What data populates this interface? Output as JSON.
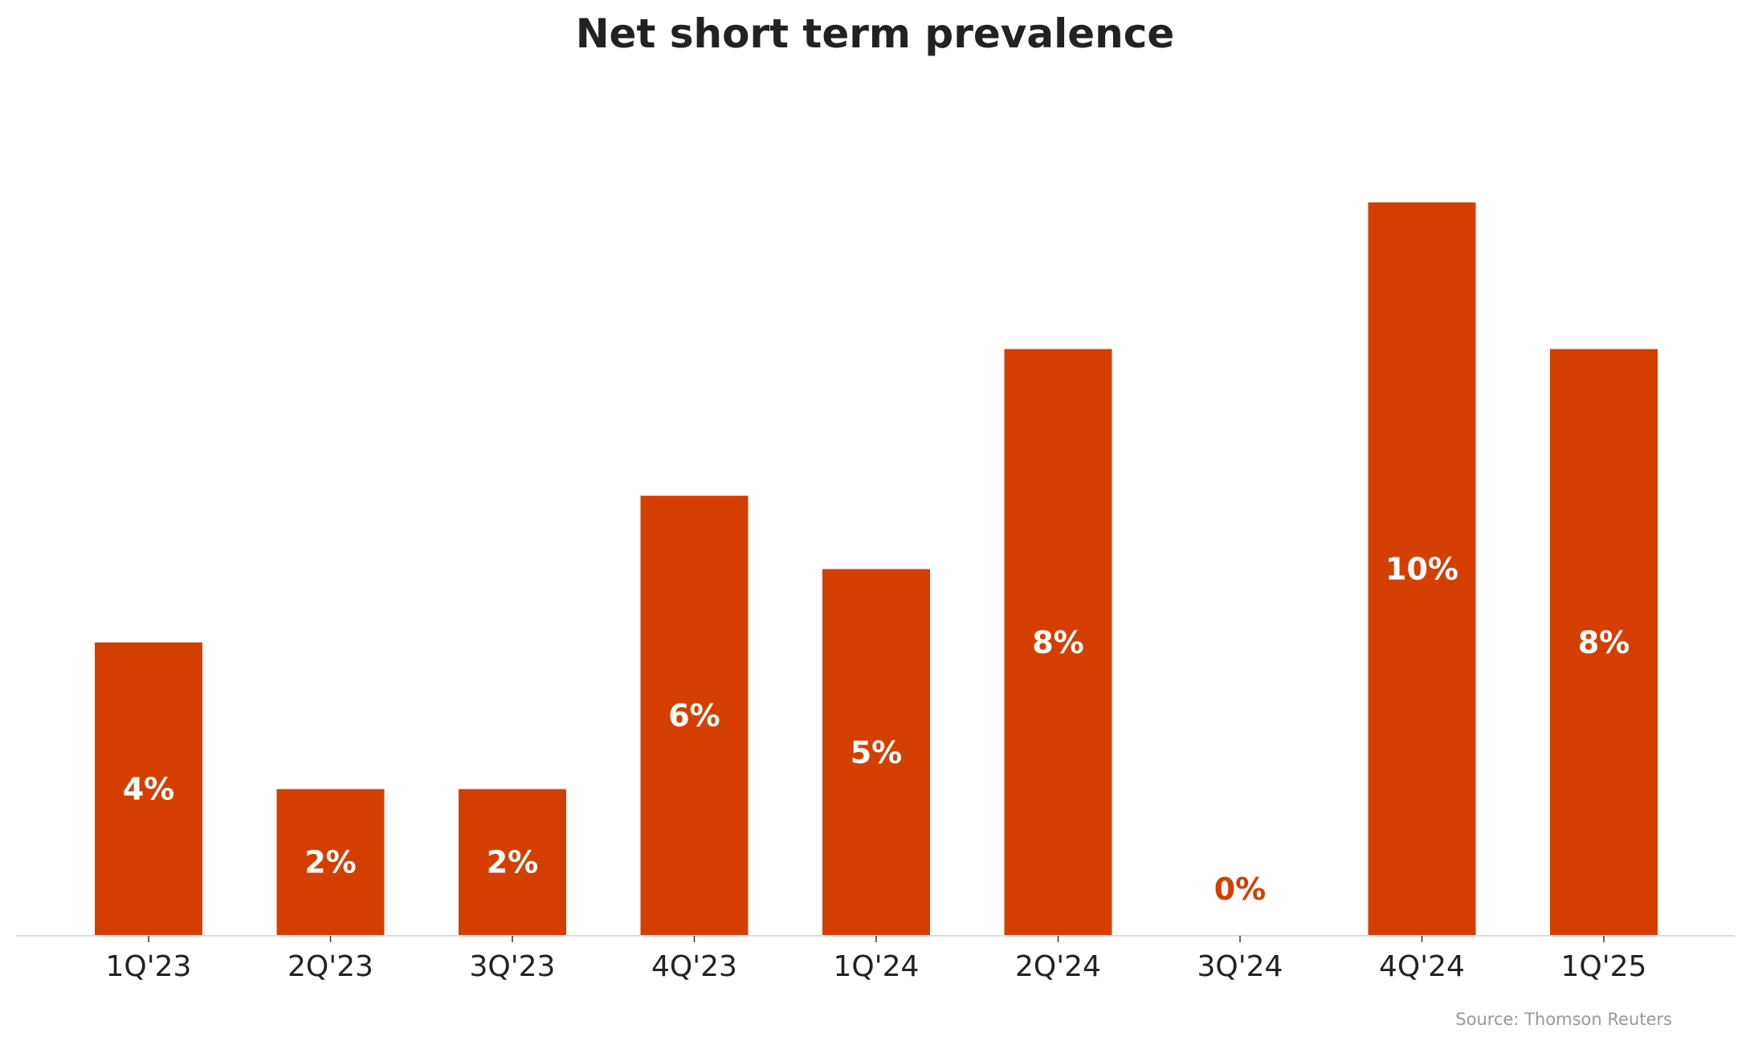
{
  "chart_data": {
    "type": "bar",
    "title": "Net short term prevalence",
    "categories": [
      "1Q'23",
      "2Q'23",
      "3Q'23",
      "4Q'23",
      "1Q'24",
      "2Q'24",
      "3Q'24",
      "4Q'24",
      "1Q'25"
    ],
    "values": [
      4,
      2,
      2,
      6,
      5,
      8,
      0,
      10,
      8
    ],
    "data_labels": [
      "4%",
      "2%",
      "2%",
      "6%",
      "5%",
      "8%",
      "0%",
      "10%",
      "8%"
    ],
    "xlabel": "",
    "ylabel": "",
    "ylim": [
      0,
      11.5
    ],
    "grid": false,
    "legend": "none",
    "bar_color": "#d43f00",
    "label_color_inside": "#ffffff",
    "label_color_outside": "#d43f00"
  },
  "source": "Source: Thomson Reuters"
}
